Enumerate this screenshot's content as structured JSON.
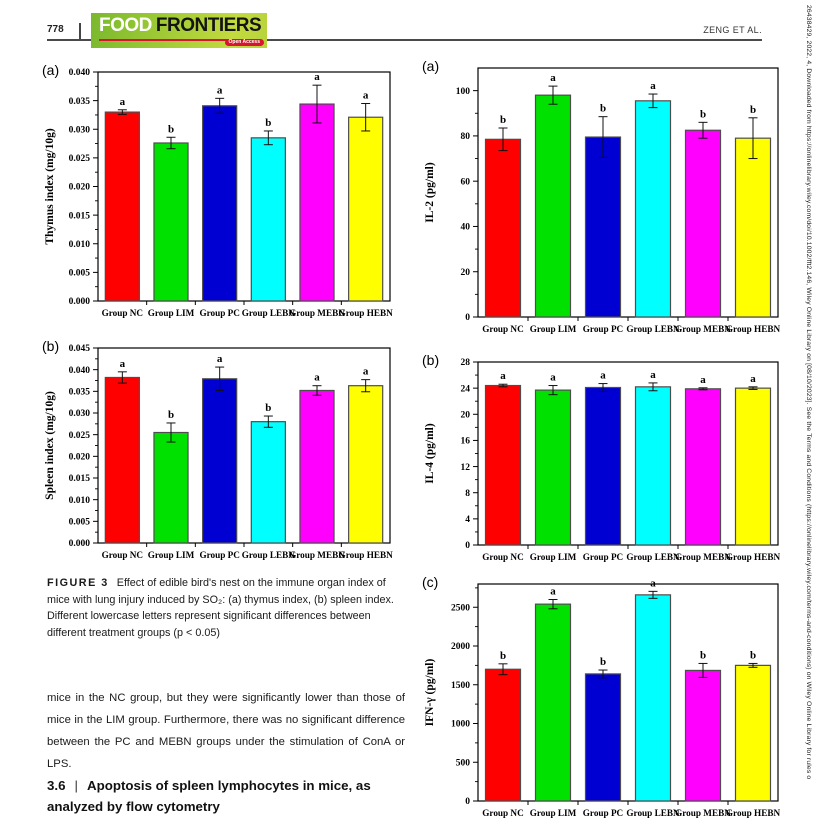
{
  "header": {
    "page_number": "778",
    "journal_logo": {
      "word1": "FOOD",
      "word2": "FRONTIERS",
      "open_access": "Open Access"
    },
    "authors": "ZENG ET AL."
  },
  "chart_data": [
    {
      "type": "bar",
      "panel_label": "(a)",
      "ylabel": "Thymus index (mg/10g)",
      "ylim": [
        0,
        0.04
      ],
      "ymax_label": 0.04,
      "ytick_major": 0.005,
      "ytick_decimals": 3,
      "categories": [
        "Group NC",
        "Group LIM",
        "Group PC",
        "Group LEBN",
        "Group MEBN",
        "Group HEBN"
      ],
      "values": [
        0.033,
        0.0276,
        0.0341,
        0.0285,
        0.0344,
        0.0321
      ],
      "errors": [
        0.0004,
        0.001,
        0.0013,
        0.0012,
        0.0033,
        0.0024
      ],
      "letters": [
        "a",
        "b",
        "a",
        "b",
        "a",
        "a"
      ],
      "bar_colors": [
        "#ff0000",
        "#00e100",
        "#0000d2",
        "#00ffff",
        "#ff00ff",
        "#ffff00"
      ]
    },
    {
      "type": "bar",
      "panel_label": "(b)",
      "ylabel": "Spleen index (mg/10g)",
      "ylim": [
        0,
        0.045
      ],
      "ymax_label": 0.045,
      "ytick_major": 0.005,
      "ytick_decimals": 3,
      "categories": [
        "Group NC",
        "Group LIM",
        "Group PC",
        "Group LEBN",
        "Group MEBN",
        "Group HEBN"
      ],
      "values": [
        0.0382,
        0.0255,
        0.0379,
        0.028,
        0.0352,
        0.0363
      ],
      "errors": [
        0.0013,
        0.0022,
        0.0027,
        0.0013,
        0.0011,
        0.0014
      ],
      "letters": [
        "a",
        "b",
        "a",
        "b",
        "a",
        "a"
      ],
      "bar_colors": [
        "#ff0000",
        "#00e100",
        "#0000d2",
        "#00ffff",
        "#ff00ff",
        "#ffff00"
      ]
    },
    {
      "type": "bar",
      "panel_label": "(a)",
      "ylabel": "IL-2 (pg/ml)",
      "ylim": [
        0,
        110
      ],
      "ymax_label": 100,
      "ytick_major": 20,
      "ytick_decimals": 0,
      "categories": [
        "Group NC",
        "Group LIM",
        "Group PC",
        "Group LEBN",
        "Group MEBN",
        "Group HEBN"
      ],
      "values": [
        78.5,
        98,
        79.5,
        95.5,
        82.5,
        79
      ],
      "errors": [
        5,
        4,
        9,
        3,
        3.5,
        9
      ],
      "letters": [
        "b",
        "a",
        "b",
        "a",
        "b",
        "b"
      ],
      "bar_colors": [
        "#ff0000",
        "#00e100",
        "#0000d2",
        "#00ffff",
        "#ff00ff",
        "#ffff00"
      ]
    },
    {
      "type": "bar",
      "panel_label": "(b)",
      "ylabel": "IL-4 (pg/ml)",
      "ylim": [
        0,
        28
      ],
      "ymax_label": 28,
      "ytick_major": 4,
      "ytick_decimals": 0,
      "categories": [
        "Group NC",
        "Group LIM",
        "Group PC",
        "Group LEBN",
        "Group MEBN",
        "Group HEBN"
      ],
      "values": [
        24.4,
        23.7,
        24.1,
        24.2,
        23.9,
        24.0
      ],
      "errors": [
        0.2,
        0.7,
        0.6,
        0.6,
        0.15,
        0.2
      ],
      "letters": [
        "a",
        "a",
        "a",
        "a",
        "a",
        "a"
      ],
      "bar_colors": [
        "#ff0000",
        "#00e100",
        "#0000d2",
        "#00ffff",
        "#ff00ff",
        "#ffff00"
      ]
    },
    {
      "type": "bar",
      "panel_label": "(c)",
      "ylabel": "IFN-γ (pg/ml)",
      "ylim": [
        0,
        2800
      ],
      "ymax_label": 2500,
      "ytick_major": 500,
      "ytick_decimals": 0,
      "categories": [
        "Group NC",
        "Group LIM",
        "Group PC",
        "Group LEBN",
        "Group MEBN",
        "Group HEBN"
      ],
      "values": [
        1700,
        2540,
        1640,
        2660,
        1685,
        1750
      ],
      "errors": [
        70,
        60,
        50,
        45,
        90,
        25
      ],
      "letters": [
        "b",
        "a",
        "b",
        "a",
        "b",
        "b"
      ],
      "bar_colors": [
        "#ff0000",
        "#00e100",
        "#0000d2",
        "#00ffff",
        "#ff00ff",
        "#ffff00"
      ]
    }
  ],
  "figure_caption": {
    "label": "FIGURE 3",
    "text": "Effect of edible bird's nest on the immune organ index of mice with lung injury induced by SO₂: (a) thymus index, (b) spleen index. Different lowercase letters represent significant differences between different treatment groups (p < 0.05)"
  },
  "body_text": "mice in the NC group, but they were significantly lower than those of mice in the LIM group. Furthermore, there was no significant difference between the PC and MEBN groups under the stimulation of ConA or LPS.",
  "section_heading": {
    "number": "3.6",
    "separator": "|",
    "title": "Apoptosis of spleen lymphocytes in mice, as analyzed by flow cytometry"
  },
  "sidebar_text": "26438429, 2022, 4, Downloaded from https://onlinelibrary.wiley.com/doi/10.1002/fft2.146, Wiley Online Library on [08/10/2023]. See the Terms and Conditions (https://onlinelibrary.wiley.com/terms-and-conditions) on Wiley Online Library for rules o"
}
